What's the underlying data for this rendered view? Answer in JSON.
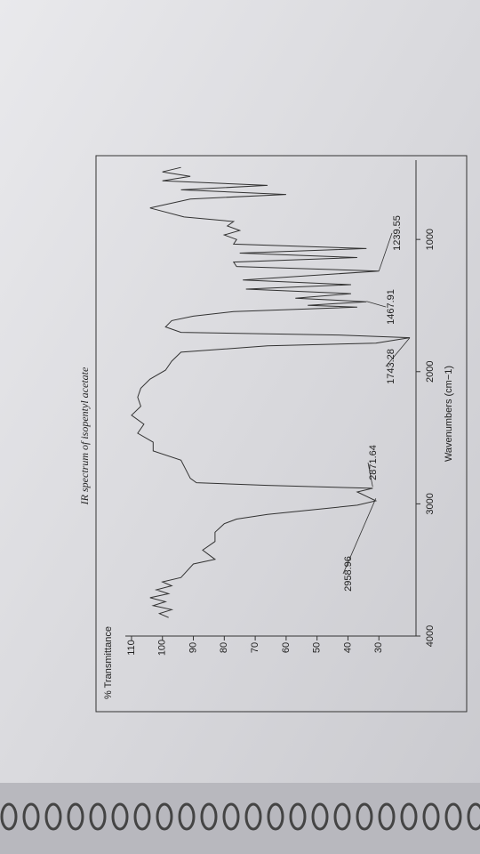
{
  "chart_data": {
    "type": "line",
    "title": "IR spectrum of isopentyl acetate",
    "x_label": "Wavenumbers (cm−1)",
    "y_label": "% Transmittance",
    "color": "#333333",
    "xlim": [
      4000,
      400
    ],
    "ylim": [
      18,
      112
    ],
    "xticks": [
      4000,
      3000,
      2000,
      1000
    ],
    "yticks": [
      30,
      40,
      50,
      60,
      70,
      80,
      90,
      100,
      110
    ],
    "x": [
      3860,
      3830,
      3800,
      3770,
      3740,
      3710,
      3680,
      3650,
      3620,
      3590,
      3557,
      3455,
      3420,
      3350,
      3285,
      3215,
      3150,
      3115,
      3080,
      3010,
      2977,
      2943,
      2910,
      2882,
      2860,
      2840,
      2807,
      2670,
      2600,
      2534,
      2466,
      2398,
      2330,
      2262,
      2193,
      2125,
      2057,
      1989,
      1921,
      1853,
      1805,
      1784,
      1743,
      1723,
      1703,
      1662,
      1614,
      1580,
      1546,
      1512,
      1498,
      1471,
      1444,
      1410,
      1376,
      1342,
      1307,
      1239,
      1205,
      1171,
      1137,
      1103,
      1069,
      1035,
      1000,
      966,
      932,
      898,
      864,
      830,
      762,
      694,
      660,
      625,
      591,
      557,
      523,
      489,
      455
    ],
    "values": [
      98,
      101,
      97,
      103,
      99,
      104,
      98,
      102,
      97,
      100,
      94,
      90,
      83,
      87,
      83,
      83,
      80,
      76,
      66,
      37,
      31,
      34,
      37,
      32,
      66,
      89,
      91,
      94,
      103,
      103,
      108,
      106,
      110,
      107,
      108,
      107,
      104,
      99,
      97,
      94,
      66,
      31,
      20,
      43,
      94,
      99,
      97,
      90,
      77,
      37,
      53,
      34,
      57,
      39,
      73,
      39,
      74,
      30,
      76,
      77,
      37,
      75,
      34,
      77,
      76,
      80,
      75,
      79,
      77,
      93,
      104,
      91,
      60,
      94,
      66,
      100,
      91,
      100,
      94
    ],
    "annotations": [
      {
        "x": 2958.96,
        "y": 31
      },
      {
        "x": 2871.64,
        "y": 32
      },
      {
        "x": 1743.28,
        "y": 20
      },
      {
        "x": 1467.91,
        "y": 34
      },
      {
        "x": 1239.55,
        "y": 30
      }
    ]
  }
}
